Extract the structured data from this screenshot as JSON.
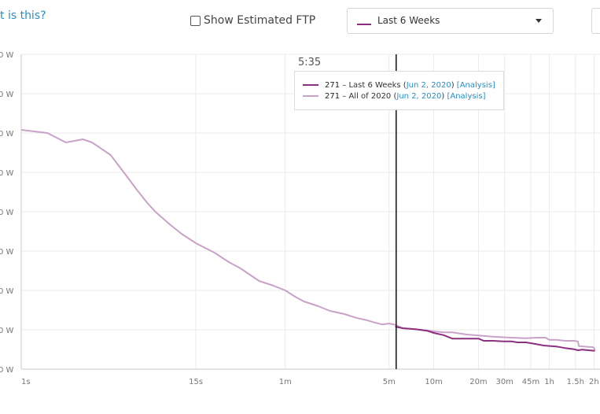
{
  "header": {
    "help_link": "t is this?",
    "ftp_toggle_label": "Show Estimated FTP",
    "range_select_value": "Last 6 Weeks"
  },
  "tooltip": {
    "time": "5:35",
    "rows": [
      {
        "watts": "271",
        "range": "Last 6 Weeks",
        "date": "Jun 2, 2020",
        "link": "[Analysis]",
        "color": "#8b2f7f"
      },
      {
        "watts": "271",
        "range": "All of 2020",
        "date": "Jun 2, 2020",
        "link": "[Analysis]",
        "color": "#c9a2c8"
      }
    ]
  },
  "chart_data": {
    "type": "line",
    "x_scale": "log",
    "x_unit": "seconds",
    "x_ticks": [
      {
        "value": 1,
        "label": "1s"
      },
      {
        "value": 15,
        "label": "15s"
      },
      {
        "value": 60,
        "label": "1m"
      },
      {
        "value": 300,
        "label": "5m"
      },
      {
        "value": 600,
        "label": "10m"
      },
      {
        "value": 1200,
        "label": "20m"
      },
      {
        "value": 1800,
        "label": "30m"
      },
      {
        "value": 2700,
        "label": "45m"
      },
      {
        "value": 3600,
        "label": "1h"
      },
      {
        "value": 5400,
        "label": "1.5h"
      },
      {
        "value": 7200,
        "label": "2h"
      }
    ],
    "y_tick_labels": [
      "0 W",
      "0 W",
      "0 W",
      "0 W",
      "0 W",
      "0 W",
      "0 W",
      "0 W",
      "0 W"
    ],
    "cursor_x": 335,
    "grid": true,
    "series": [
      {
        "name": "All of 2020",
        "color": "#c9a2c8",
        "points": [
          [
            1,
            0.76
          ],
          [
            1.5,
            0.75
          ],
          [
            2,
            0.72
          ],
          [
            2.6,
            0.73
          ],
          [
            3,
            0.72
          ],
          [
            4,
            0.68
          ],
          [
            5,
            0.62
          ],
          [
            6,
            0.57
          ],
          [
            7,
            0.53
          ],
          [
            8,
            0.5
          ],
          [
            10,
            0.46
          ],
          [
            12,
            0.43
          ],
          [
            15,
            0.4
          ],
          [
            20,
            0.37
          ],
          [
            25,
            0.34
          ],
          [
            30,
            0.32
          ],
          [
            40,
            0.28
          ],
          [
            50,
            0.265
          ],
          [
            60,
            0.25
          ],
          [
            70,
            0.23
          ],
          [
            80,
            0.215
          ],
          [
            100,
            0.2
          ],
          [
            120,
            0.185
          ],
          [
            150,
            0.175
          ],
          [
            180,
            0.163
          ],
          [
            210,
            0.156
          ],
          [
            240,
            0.148
          ],
          [
            270,
            0.142
          ],
          [
            300,
            0.145
          ],
          [
            330,
            0.141
          ],
          [
            370,
            0.13
          ],
          [
            450,
            0.127
          ],
          [
            540,
            0.123
          ],
          [
            600,
            0.12
          ],
          [
            700,
            0.117
          ],
          [
            800,
            0.117
          ],
          [
            1000,
            0.11
          ],
          [
            1200,
            0.107
          ],
          [
            1500,
            0.103
          ],
          [
            2000,
            0.1
          ],
          [
            2500,
            0.098
          ],
          [
            3000,
            0.1
          ],
          [
            3400,
            0.1
          ],
          [
            3600,
            0.093
          ],
          [
            4000,
            0.093
          ],
          [
            4600,
            0.09
          ],
          [
            5300,
            0.09
          ],
          [
            5600,
            0.088
          ],
          [
            5700,
            0.073
          ],
          [
            6500,
            0.071
          ],
          [
            7000,
            0.07
          ],
          [
            7200,
            0.068
          ],
          [
            7300,
            0.06
          ]
        ]
      },
      {
        "name": "Last 6 Weeks",
        "color": "#8b2f7f",
        "points": [
          [
            330,
            0.135
          ],
          [
            370,
            0.13
          ],
          [
            450,
            0.127
          ],
          [
            540,
            0.122
          ],
          [
            600,
            0.115
          ],
          [
            700,
            0.108
          ],
          [
            800,
            0.097
          ],
          [
            950,
            0.097
          ],
          [
            1200,
            0.097
          ],
          [
            1300,
            0.09
          ],
          [
            1500,
            0.09
          ],
          [
            1800,
            0.088
          ],
          [
            2000,
            0.088
          ],
          [
            2200,
            0.085
          ],
          [
            2500,
            0.085
          ],
          [
            2900,
            0.08
          ],
          [
            3300,
            0.075
          ],
          [
            4000,
            0.072
          ],
          [
            4600,
            0.067
          ],
          [
            5300,
            0.063
          ],
          [
            5600,
            0.06
          ],
          [
            6000,
            0.062
          ],
          [
            6600,
            0.06
          ],
          [
            7300,
            0.058
          ]
        ]
      }
    ]
  }
}
